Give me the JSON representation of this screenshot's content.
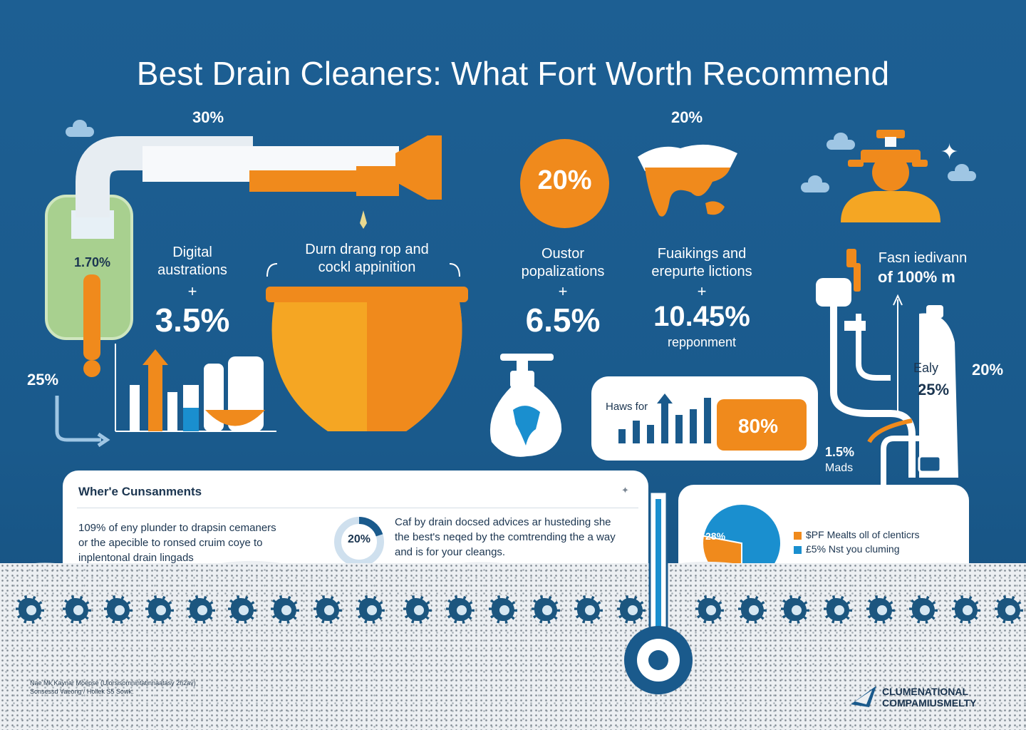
{
  "title": "Best Drain Cleaners: What Fort Worth Recommend",
  "stats": {
    "pipe_top": "30%",
    "map_top": "20%",
    "left_tank": "1.70%",
    "left_bottom": "25%",
    "circle_orange": "20%"
  },
  "col1": {
    "label": "Digital\naustrations",
    "plus": "+",
    "value": "3.5%"
  },
  "col2": {
    "label": "Durn drang rop and\ncockl appinition"
  },
  "col3": {
    "label": "Oustor\npopalizations",
    "plus": "+",
    "value": "6.5%"
  },
  "col4": {
    "label": "Fuaikings and\nerepurte lictions",
    "plus": "+",
    "value": "10.45%",
    "sub": "repponment"
  },
  "right_person": {
    "label": "Fasn iedivann",
    "value": "of 100% m"
  },
  "bar_card": {
    "label": "Haws for",
    "badge": "80%"
  },
  "tank_right": {
    "label": "Ealy",
    "value": "25%",
    "side": "20%"
  },
  "valve": {
    "value": "1.5%",
    "label": "Mads"
  },
  "info_card": {
    "heading": "Wher'e Cunsanments",
    "text_left": "109% of eny plunder to drapsin cemaners\nor the apecible to ronsed cruim coye to\ninplentonal drain lingads",
    "ring_value": "20%",
    "ring_fraction": 0.2,
    "text_right": "Caf by drain docsed advices ar husteding she\nthe best's neqed by the comtrending the a way\nand is for your cleangs."
  },
  "pie_card": {
    "slice_label": "28%",
    "slices": [
      {
        "value": 28,
        "color": "#f08a1c"
      },
      {
        "value": 72,
        "color": "#1a8fcf"
      }
    ],
    "legend": [
      {
        "text": "$PF Mealts oll of clenticrs",
        "color": "#f08a1c"
      },
      {
        "text": "£5% Nst you cluming",
        "color": "#1a8fcf"
      }
    ]
  },
  "footer": {
    "fine_print": "Nae Mk Kaynar Moepse (Ulorsisomnintatinnaatasy 2h2av)\nSonsessd Vaeong / Hollek S5 Sowk.",
    "brand_line1": "CLUMENATIONAL",
    "brand_line2": "COMPAMIUSMELTY"
  },
  "colors": {
    "orange": "#f08a1c",
    "navy": "#1a5a8c",
    "blue": "#1a8fcf",
    "green": "#a8d08f"
  }
}
